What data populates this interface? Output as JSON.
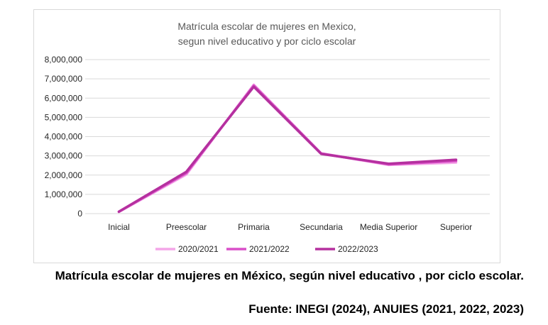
{
  "chart_data": {
    "type": "line",
    "title_lines": [
      "Matrícula escolar de mujeres en Mexico,",
      "segun nivel educativo y por ciclo escolar"
    ],
    "categories": [
      "Inicial",
      "Preescolar",
      "Primaria",
      "Secundaria",
      "Media Superior",
      "Superior"
    ],
    "series": [
      {
        "name": "2020/2021",
        "color": "#f4a6e8",
        "values": [
          90000,
          2030000,
          6700000,
          3130000,
          2530000,
          2650000
        ]
      },
      {
        "name": "2021/2022",
        "color": "#d94fc8",
        "values": [
          95000,
          2100000,
          6650000,
          3120000,
          2560000,
          2730000
        ]
      },
      {
        "name": "2022/2023",
        "color": "#b5309f",
        "values": [
          100000,
          2170000,
          6590000,
          3100000,
          2590000,
          2800000
        ]
      }
    ],
    "y_ticks": [
      "0",
      "1,000,000",
      "2,000,000",
      "3,000,000",
      "4,000,000",
      "5,000,000",
      "6,000,000",
      "7,000,000",
      "8,000,000"
    ],
    "ylim": [
      0,
      8000000
    ],
    "grid": true,
    "legend_position": "bottom"
  },
  "caption": {
    "title": "Matrícula escolar de mujeres en México, según nivel educativo , por ciclo escolar.",
    "source": "Fuente: INEGI (2024), ANUIES (2021, 2022, 2023)"
  }
}
